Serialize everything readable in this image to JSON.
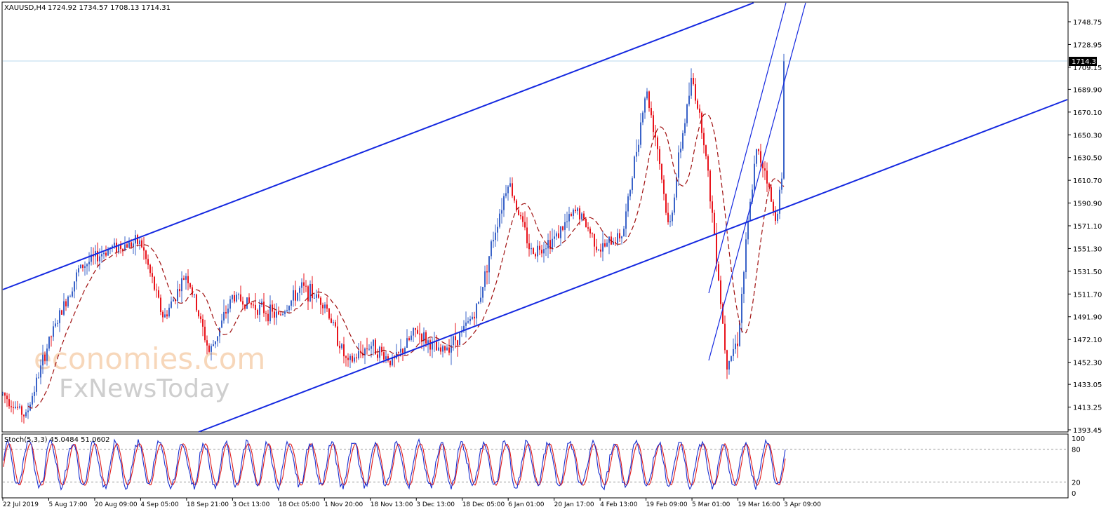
{
  "header": {
    "symbol": "XAUUSD,H4",
    "ohlc": "1724.92 1734.57 1708.13 1714.31"
  },
  "price_axis": {
    "ticks": [
      "1748.75",
      "1728.95",
      "1709.15",
      "1689.90",
      "1670.10",
      "1650.30",
      "1630.50",
      "1610.70",
      "1590.90",
      "1571.10",
      "1551.30",
      "1531.50",
      "1511.70",
      "1491.90",
      "1472.10",
      "1452.30",
      "1433.05",
      "1413.25",
      "1393.45"
    ],
    "tick_values": [
      1748.75,
      1728.95,
      1709.15,
      1689.9,
      1670.1,
      1650.3,
      1630.5,
      1610.7,
      1590.9,
      1571.1,
      1551.3,
      1531.5,
      1511.7,
      1491.9,
      1472.1,
      1452.3,
      1433.05,
      1413.25,
      1393.45
    ],
    "current_price_label": "1714.31",
    "current_price": 1714.31
  },
  "stoch": {
    "label": "Stoch(5,3,3) 45.0484 51.0602",
    "levels": [
      "100",
      "80",
      "20",
      "0"
    ],
    "level_values": [
      100,
      80,
      20,
      0
    ]
  },
  "time_axis": {
    "labels": [
      "22 Jul 2019",
      "5 Aug 17:00",
      "20 Aug 09:00",
      "4 Sep 05:00",
      "18 Sep 21:00",
      "3 Oct 13:00",
      "18 Oct 05:00",
      "1 Nov 20:00",
      "18 Nov 13:00",
      "3 Dec 13:00",
      "18 Dec 05:00",
      "6 Jan 01:00",
      "20 Jan 17:00",
      "4 Feb 13:00",
      "19 Feb 09:00",
      "5 Mar 01:00",
      "19 Mar 16:00",
      "3 Apr 09:00"
    ]
  },
  "watermark": {
    "line1": "economies.com",
    "line2": "FxNewsToday"
  },
  "colors": {
    "bull": "#3a63c8",
    "bear": "#e8141c",
    "channel": "#1428e0",
    "ma": "#a01010",
    "stoch_main": "#1a2fd0",
    "stoch_signal": "#e01a1a",
    "price_line": "#b8d8ec"
  },
  "chart_data": {
    "type": "candlestick",
    "symbol": "XAUUSD",
    "timeframe": "H4",
    "y_range": [
      1390,
      1762
    ],
    "key_points": [
      {
        "time": "22 Jul 2019",
        "price": 1425
      },
      {
        "time": "1 Aug 2019",
        "price": 1405
      },
      {
        "time": "5 Aug 17:00",
        "price": 1470
      },
      {
        "time": "13 Aug 2019",
        "price": 1534
      },
      {
        "time": "26 Aug 2019",
        "price": 1552
      },
      {
        "time": "4 Sep 05:00",
        "price": 1557
      },
      {
        "time": "10 Sep 2019",
        "price": 1490
      },
      {
        "time": "18 Sep 21:00",
        "price": 1530
      },
      {
        "time": "1 Oct 2019",
        "price": 1460
      },
      {
        "time": "3 Oct 13:00",
        "price": 1510
      },
      {
        "time": "18 Oct 05:00",
        "price": 1492
      },
      {
        "time": "23 Oct 2019",
        "price": 1517
      },
      {
        "time": "1 Nov 20:00",
        "price": 1505
      },
      {
        "time": "12 Nov 2019",
        "price": 1450
      },
      {
        "time": "18 Nov 13:00",
        "price": 1468
      },
      {
        "time": "26 Nov 2019",
        "price": 1452
      },
      {
        "time": "3 Dec 13:00",
        "price": 1480
      },
      {
        "time": "10 Dec 2019",
        "price": 1460
      },
      {
        "time": "18 Dec 05:00",
        "price": 1478
      },
      {
        "time": "25 Dec 2019",
        "price": 1500
      },
      {
        "time": "3 Jan 2020",
        "price": 1560
      },
      {
        "time": "6 Jan 01:00",
        "price": 1611
      },
      {
        "time": "10 Jan 2020",
        "price": 1548
      },
      {
        "time": "20 Jan 17:00",
        "price": 1560
      },
      {
        "time": "28 Jan 2020",
        "price": 1585
      },
      {
        "time": "4 Feb 13:00",
        "price": 1550
      },
      {
        "time": "11 Feb 2020",
        "price": 1565
      },
      {
        "time": "19 Feb 09:00",
        "price": 1690
      },
      {
        "time": "25 Feb 2020",
        "price": 1640
      },
      {
        "time": "28 Feb 2020",
        "price": 1565
      },
      {
        "time": "3 Mar 2020",
        "price": 1640
      },
      {
        "time": "5 Mar 01:00",
        "price": 1700
      },
      {
        "time": "9 Mar 2020",
        "price": 1650
      },
      {
        "time": "12 Mar 2020",
        "price": 1560
      },
      {
        "time": "16 Mar 2020",
        "price": 1452
      },
      {
        "time": "19 Mar 16:00",
        "price": 1472
      },
      {
        "time": "23 Mar 2020",
        "price": 1565
      },
      {
        "time": "24 Mar 2020",
        "price": 1636
      },
      {
        "time": "27 Mar 2020",
        "price": 1620
      },
      {
        "time": "31 Mar 2020",
        "price": 1575
      },
      {
        "time": "3 Apr 09:00",
        "price": 1620
      },
      {
        "time": "7 Apr 2020",
        "price": 1670
      },
      {
        "time": "9 Apr 2020",
        "price": 1690
      },
      {
        "time": "14 Apr 2020",
        "price": 1747
      },
      {
        "time": "15 Apr 2020",
        "price": 1714.31
      }
    ],
    "last_bar": {
      "open": 1724.92,
      "high": 1734.57,
      "low": 1708.13,
      "close": 1714.31
    },
    "stochastic": {
      "k_period": 5,
      "d_period": 3,
      "slowing": 3,
      "main": 45.0484,
      "signal": 51.0602
    }
  }
}
